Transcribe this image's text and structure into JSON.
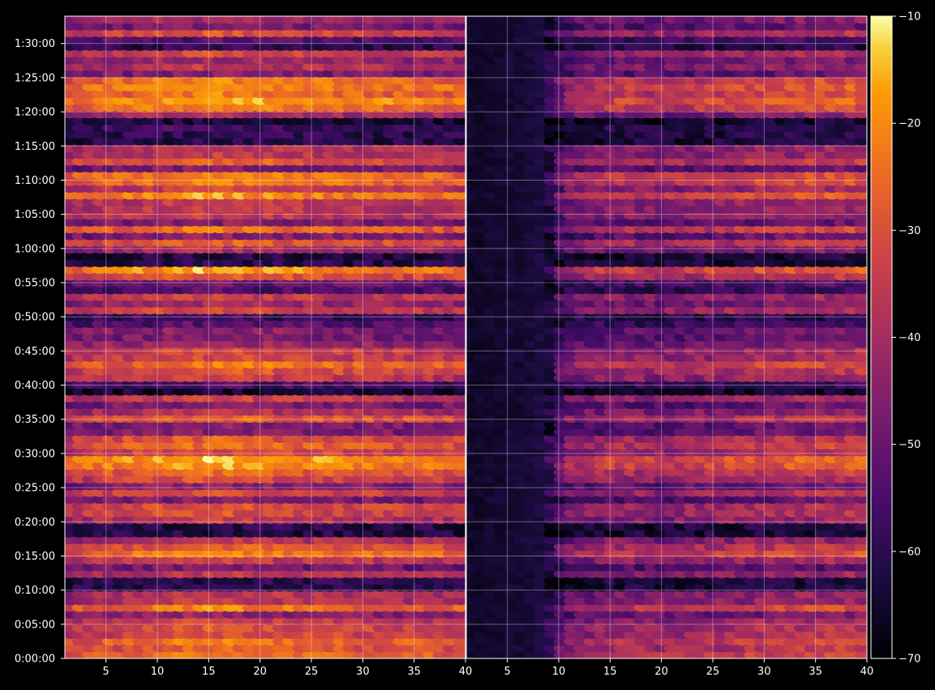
{
  "chart_data": {
    "type": "heatmap",
    "panels": [
      {
        "name": "",
        "xlim": [
          1,
          40
        ],
        "xticks": [
          5,
          10,
          15,
          20,
          25,
          30,
          35,
          40
        ],
        "note_profile": [
          0.64,
          0.66,
          0.68,
          0.7,
          0.71,
          0.72,
          0.73,
          0.74,
          0.75,
          0.76,
          0.77,
          0.78,
          0.79,
          0.8,
          0.8,
          0.81,
          0.8,
          0.79,
          0.78,
          0.77,
          0.77,
          0.76,
          0.76,
          0.75,
          0.75,
          0.75,
          0.74,
          0.74,
          0.73,
          0.73,
          0.73,
          0.72,
          0.72,
          0.72,
          0.71,
          0.71,
          0.7,
          0.7,
          0.69,
          0.69
        ]
      },
      {
        "name": "",
        "xlim": [
          1,
          40
        ],
        "xticks": [
          5,
          10,
          15,
          20,
          25,
          30,
          35,
          40
        ],
        "note_profile": [
          0.05,
          0.05,
          0.06,
          0.06,
          0.07,
          0.07,
          0.08,
          0.1,
          0.2,
          0.34,
          0.44,
          0.48,
          0.5,
          0.52,
          0.54,
          0.55,
          0.55,
          0.54,
          0.53,
          0.52,
          0.52,
          0.53,
          0.54,
          0.55,
          0.56,
          0.57,
          0.58,
          0.59,
          0.6,
          0.61,
          0.61,
          0.62,
          0.62,
          0.63,
          0.63,
          0.64,
          0.64,
          0.64,
          0.65,
          0.65
        ]
      }
    ],
    "ylim_seconds": [
      0,
      5640
    ],
    "yticks": [
      "0:00:00",
      "0:05:00",
      "0:10:00",
      "0:15:00",
      "0:20:00",
      "0:25:00",
      "0:30:00",
      "0:35:00",
      "0:40:00",
      "0:45:00",
      "0:50:00",
      "0:55:00",
      "1:00:00",
      "1:05:00",
      "1:10:00",
      "1:15:00",
      "1:20:00",
      "1:25:00",
      "1:30:00"
    ],
    "time_rows": 95,
    "colorbar": {
      "colormap": "inferno",
      "range": [
        -70,
        -10
      ],
      "ticks": [
        "−10",
        "−20",
        "−30",
        "−40",
        "−50",
        "−60",
        "−70"
      ]
    },
    "grid": true
  }
}
